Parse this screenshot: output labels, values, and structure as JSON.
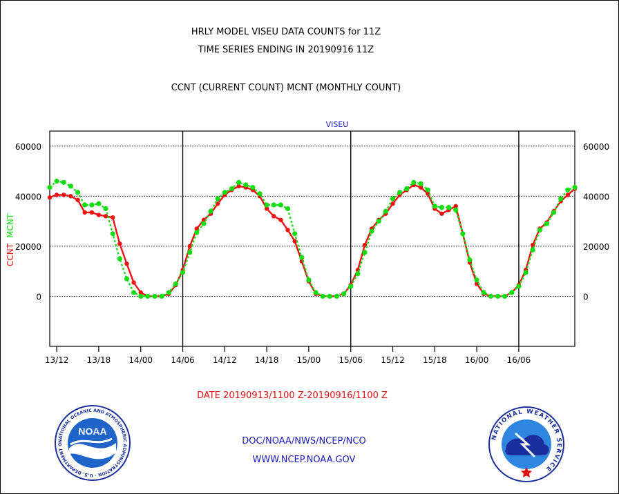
{
  "header": {
    "title_line1": "HRLY MODEL VISEU DATA COUNTS for 11Z",
    "title_line2": "TIME SERIES ENDING IN 20190916 11Z",
    "subtitle": "CCNT (CURRENT COUNT) MCNT (MONTHLY COUNT)"
  },
  "footer": {
    "date_range": "DATE 20190913/1100 Z-20190916/1100 Z",
    "org_line": "DOC/NOAA/NWS/NCEP/NCO",
    "website": "WWW.NCEP.NOAA.GOV"
  },
  "logos": {
    "noaa_text": "NOAA",
    "noaa_ring": "NATIONAL OCEANIC AND ATMOSPHERIC ADMINISTRATION · U.S. DEPARTMENT OF COMMERCE",
    "nws_ring": "NATIONAL WEATHER SERVICE"
  },
  "colors": {
    "ccnt": "#ee1111",
    "mcnt": "#11dd11",
    "plot_title": "#1a1ab8",
    "date_text": "#dd1111",
    "footer_text": "#1a1ab8"
  },
  "chart_data": {
    "type": "line",
    "plot_title": "VISEU",
    "y_label_ccnt": "CCNT",
    "y_label_mcnt": "MCNT",
    "ylim": [
      -20000,
      66000
    ],
    "y_ticks": [
      0,
      20000,
      40000,
      60000
    ],
    "y_tick_labels": [
      "0",
      "20000",
      "40000",
      "60000"
    ],
    "x_ticks": [
      "13/12",
      "13/18",
      "14/00",
      "14/06",
      "14/12",
      "14/18",
      "15/00",
      "15/06",
      "15/12",
      "15/18",
      "16/00",
      "16/06"
    ],
    "x_start": "13/11",
    "x_end": "16/11",
    "day_separators": [
      "14/06",
      "15/06",
      "16/06"
    ],
    "grid": "horizontal dotted",
    "series": [
      {
        "name": "CCNT",
        "values": [
          39500,
          40500,
          40500,
          40000,
          38500,
          33500,
          33500,
          32500,
          32000,
          31500,
          21000,
          13000,
          5500,
          1500,
          0,
          0,
          0,
          1000,
          4500,
          10500,
          20000,
          27000,
          30500,
          33000,
          37000,
          40500,
          42500,
          44000,
          43500,
          42500,
          40000,
          35000,
          32000,
          30500,
          26500,
          22000,
          14000,
          6000,
          1000,
          0,
          0,
          0,
          1000,
          4500,
          10500,
          20500,
          27000,
          30500,
          33000,
          37000,
          40500,
          42500,
          44500,
          43500,
          41000,
          35000,
          33000,
          34500,
          36000,
          25000,
          13500,
          5000,
          1000,
          0,
          0,
          0,
          1500,
          4500,
          10500,
          20500,
          27000,
          29500,
          34000,
          38000,
          40500,
          43000
        ]
      },
      {
        "name": "MCNT",
        "values": [
          43500,
          46000,
          45500,
          44000,
          41500,
          36500,
          36500,
          37000,
          35000,
          25000,
          15000,
          7000,
          1500,
          0,
          0,
          0,
          0,
          1500,
          5000,
          9500,
          17500,
          25500,
          29000,
          34000,
          39000,
          41500,
          43000,
          45500,
          44500,
          43500,
          41000,
          36500,
          36500,
          36500,
          35000,
          25000,
          15500,
          6500,
          1500,
          0,
          0,
          0,
          1000,
          4000,
          9000,
          17500,
          26000,
          30000,
          34000,
          39000,
          41500,
          43000,
          45500,
          45000,
          42500,
          36000,
          35500,
          35500,
          34500,
          25000,
          14500,
          6500,
          1500,
          0,
          0,
          0,
          1500,
          4000,
          9500,
          18500,
          26500,
          29000,
          33500,
          39000,
          42500,
          43500
        ]
      }
    ]
  }
}
